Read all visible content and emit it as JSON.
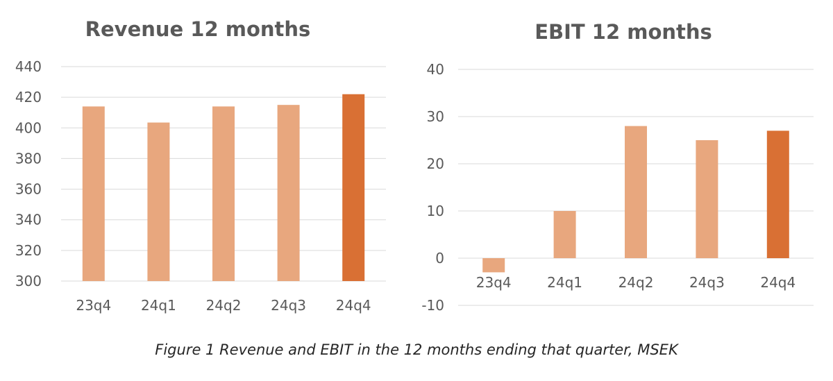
{
  "colors": {
    "normal_bar": "#e8a77e",
    "highlight_bar": "#d97034",
    "grid": "#d9d9d9",
    "text": "#595959"
  },
  "chart_data": [
    {
      "type": "bar",
      "title": "Revenue 12 months",
      "categories": [
        "23q4",
        "24q1",
        "24q2",
        "24q3",
        "24q4"
      ],
      "values": [
        414,
        403.5,
        414,
        415,
        422
      ],
      "ylim": [
        300,
        440
      ],
      "yticks": [
        "440",
        "420",
        "400",
        "380",
        "360",
        "340",
        "320",
        "300"
      ],
      "highlight_index": 4,
      "xlabel": "",
      "ylabel": ""
    },
    {
      "type": "bar",
      "title": "EBIT 12 months",
      "categories": [
        "23q4",
        "24q1",
        "24q2",
        "24q3",
        "24q4"
      ],
      "values": [
        -3,
        10,
        28,
        25,
        27
      ],
      "ylim": [
        -10,
        40
      ],
      "yticks": [
        "40",
        "30",
        "20",
        "10",
        "0",
        "-10"
      ],
      "highlight_index": 4,
      "xlabel": "",
      "ylabel": ""
    }
  ],
  "caption": "Figure 1 Revenue and EBIT in the 12 months ending that quarter, MSEK"
}
